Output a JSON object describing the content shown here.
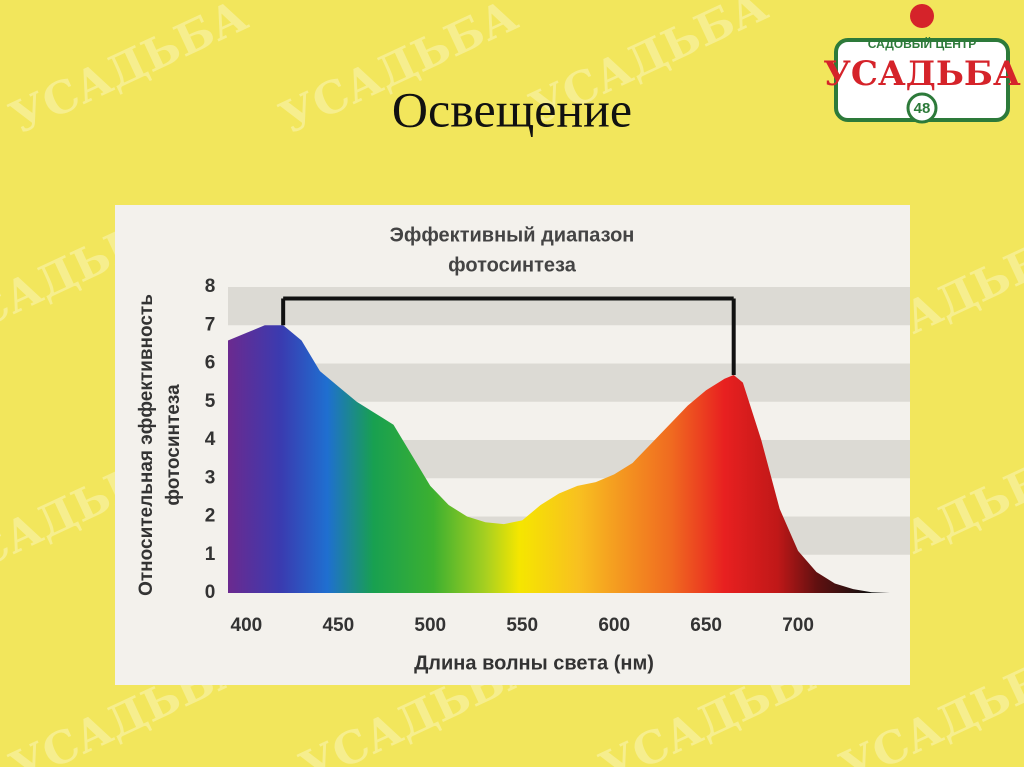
{
  "slide_title": "Освещение",
  "logo": {
    "subtitle": "САДОВЫЙ ЦЕНТР",
    "name": "УСАДЬБА",
    "number": "48"
  },
  "watermark": "УСАДЬБА",
  "chart_data": {
    "type": "area",
    "title": [
      "Эффективный диапазон",
      "фотосинтеза"
    ],
    "xlabel": "Длина волны света (нм)",
    "ylabel": [
      "Относительная эффективность",
      "фотосинтеза"
    ],
    "x": [
      390,
      400,
      410,
      420,
      430,
      440,
      450,
      460,
      470,
      480,
      490,
      500,
      510,
      520,
      530,
      540,
      550,
      560,
      570,
      580,
      590,
      600,
      610,
      620,
      630,
      640,
      650,
      660,
      665,
      670,
      680,
      690,
      700,
      710,
      720,
      730,
      740,
      750
    ],
    "values": [
      6.6,
      6.8,
      7.0,
      7.0,
      6.6,
      5.8,
      5.4,
      5.0,
      4.7,
      4.4,
      3.6,
      2.8,
      2.3,
      2.0,
      1.85,
      1.8,
      1.9,
      2.3,
      2.6,
      2.8,
      2.9,
      3.1,
      3.4,
      3.9,
      4.4,
      4.9,
      5.3,
      5.6,
      5.7,
      5.5,
      4.0,
      2.2,
      1.1,
      0.55,
      0.25,
      0.1,
      0.02,
      0
    ],
    "bracket": {
      "x": [
        420,
        665
      ],
      "y": 7.7
    },
    "xlim": [
      390,
      750
    ],
    "ylim": [
      0,
      8
    ],
    "xticks": [
      400,
      450,
      500,
      550,
      600,
      650,
      700
    ],
    "yticks": [
      0,
      1,
      2,
      3,
      4,
      5,
      6,
      7,
      8
    ],
    "grid": "bands"
  }
}
